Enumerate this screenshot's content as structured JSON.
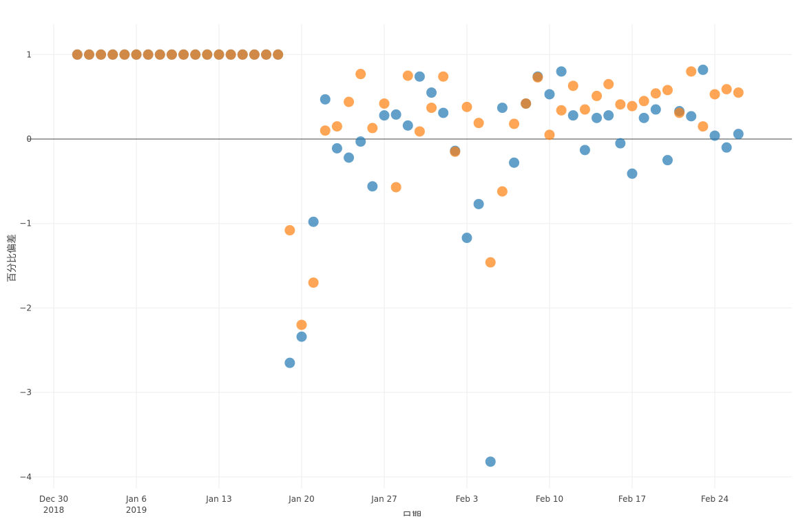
{
  "chart_data": {
    "type": "scatter",
    "title": "",
    "xlabel": "日期",
    "ylabel": "百分比偏差",
    "xlim": [
      "2018-12-28",
      "2019-02-28"
    ],
    "ylim": [
      -4.15,
      1.35
    ],
    "grid": true,
    "legend": "none",
    "x_ticks": [
      {
        "date": "2018-12-30",
        "label": "Dec 30",
        "sub": "2018"
      },
      {
        "date": "2019-01-06",
        "label": "Jan 6",
        "sub": "2019"
      },
      {
        "date": "2019-01-13",
        "label": "Jan 13",
        "sub": ""
      },
      {
        "date": "2019-01-20",
        "label": "Jan 20",
        "sub": ""
      },
      {
        "date": "2019-01-27",
        "label": "Jan 27",
        "sub": ""
      },
      {
        "date": "2019-02-03",
        "label": "Feb 3",
        "sub": ""
      },
      {
        "date": "2019-02-10",
        "label": "Feb 10",
        "sub": ""
      },
      {
        "date": "2019-02-17",
        "label": "Feb 17",
        "sub": ""
      },
      {
        "date": "2019-02-24",
        "label": "Feb 24",
        "sub": ""
      }
    ],
    "y_ticks": [
      {
        "value": 1,
        "label": "1"
      },
      {
        "value": 0,
        "label": "0"
      },
      {
        "value": -1,
        "label": "−1"
      },
      {
        "value": -2,
        "label": "−2"
      },
      {
        "value": -3,
        "label": "−3"
      },
      {
        "value": -4,
        "label": "−4"
      }
    ],
    "x": [
      "2019-01-01",
      "2019-01-02",
      "2019-01-03",
      "2019-01-04",
      "2019-01-05",
      "2019-01-06",
      "2019-01-07",
      "2019-01-08",
      "2019-01-09",
      "2019-01-10",
      "2019-01-11",
      "2019-01-12",
      "2019-01-13",
      "2019-01-14",
      "2019-01-15",
      "2019-01-16",
      "2019-01-17",
      "2019-01-18",
      "2019-01-19",
      "2019-01-20",
      "2019-01-21",
      "2019-01-22",
      "2019-01-23",
      "2019-01-24",
      "2019-01-25",
      "2019-01-26",
      "2019-01-27",
      "2019-01-28",
      "2019-01-29",
      "2019-01-30",
      "2019-01-31",
      "2019-02-01",
      "2019-02-02",
      "2019-02-03",
      "2019-02-04",
      "2019-02-05",
      "2019-02-06",
      "2019-02-07",
      "2019-02-08",
      "2019-02-09",
      "2019-02-10",
      "2019-02-11",
      "2019-02-12",
      "2019-02-13",
      "2019-02-14",
      "2019-02-15",
      "2019-02-16",
      "2019-02-17",
      "2019-02-18",
      "2019-02-19",
      "2019-02-20",
      "2019-02-21",
      "2019-02-22",
      "2019-02-23",
      "2019-02-24",
      "2019-02-25",
      "2019-02-26"
    ],
    "series": [
      {
        "name": "series-blue",
        "color": "#1f77b4",
        "values": [
          1,
          1,
          1,
          1,
          1,
          1,
          1,
          1,
          1,
          1,
          1,
          1,
          1,
          1,
          1,
          1,
          1,
          1,
          -2.65,
          -2.34,
          -0.98,
          0.47,
          -0.11,
          -0.22,
          -0.03,
          -0.56,
          0.28,
          0.29,
          0.16,
          0.74,
          0.55,
          0.31,
          -0.14,
          -1.17,
          -0.77,
          -3.82,
          0.37,
          -0.28,
          0.42,
          0.74,
          0.53,
          0.8,
          0.28,
          -0.13,
          0.25,
          0.28,
          -0.05,
          -0.41,
          0.25,
          0.35,
          -0.25,
          0.33,
          0.27,
          0.82,
          0.04,
          -0.1,
          0.06
        ]
      },
      {
        "name": "series-orange",
        "color": "#ff7f0e",
        "values": [
          1,
          1,
          1,
          1,
          1,
          1,
          1,
          1,
          1,
          1,
          1,
          1,
          1,
          1,
          1,
          1,
          1,
          1,
          -1.08,
          -2.2,
          -1.7,
          0.1,
          0.15,
          0.44,
          0.77,
          0.13,
          0.42,
          -0.57,
          0.75,
          0.09,
          0.37,
          0.74,
          -0.15,
          0.38,
          0.19,
          -1.46,
          -0.62,
          0.18,
          0.42,
          0.73,
          0.05,
          0.34,
          0.63,
          0.35,
          0.51,
          0.65,
          0.41,
          0.39,
          0.45,
          0.54,
          0.58,
          0.31,
          0.8,
          0.15,
          0.53,
          0.59,
          0.55
        ]
      }
    ]
  }
}
